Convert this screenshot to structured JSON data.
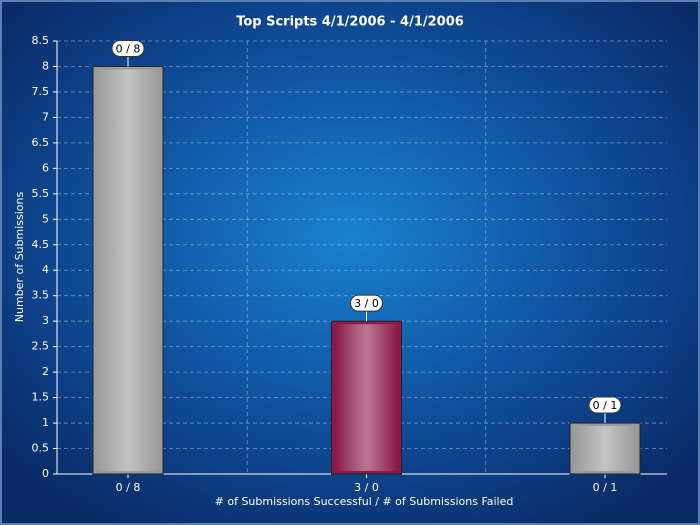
{
  "chart_data": {
    "type": "bar",
    "title": "Top Scripts 4/1/2006  - 4/1/2006",
    "x_label": "# of Submissions Successful  / # of Submissions Failed",
    "y_label": "Number of Submissions",
    "categories": [
      "0 / 8",
      "3 / 0",
      "0 / 1"
    ],
    "values": [
      8,
      3,
      1
    ],
    "colors": [
      "#9a9a9a",
      "#8a1a48",
      "#9a9a9a"
    ],
    "ylim": [
      0,
      8.5
    ],
    "yticks": [
      0,
      0.5,
      1,
      1.5,
      2,
      2.5,
      3,
      3.5,
      4,
      4.5,
      5,
      5.5,
      6,
      6.5,
      7,
      7.5,
      8,
      8.5
    ],
    "grid": true
  }
}
